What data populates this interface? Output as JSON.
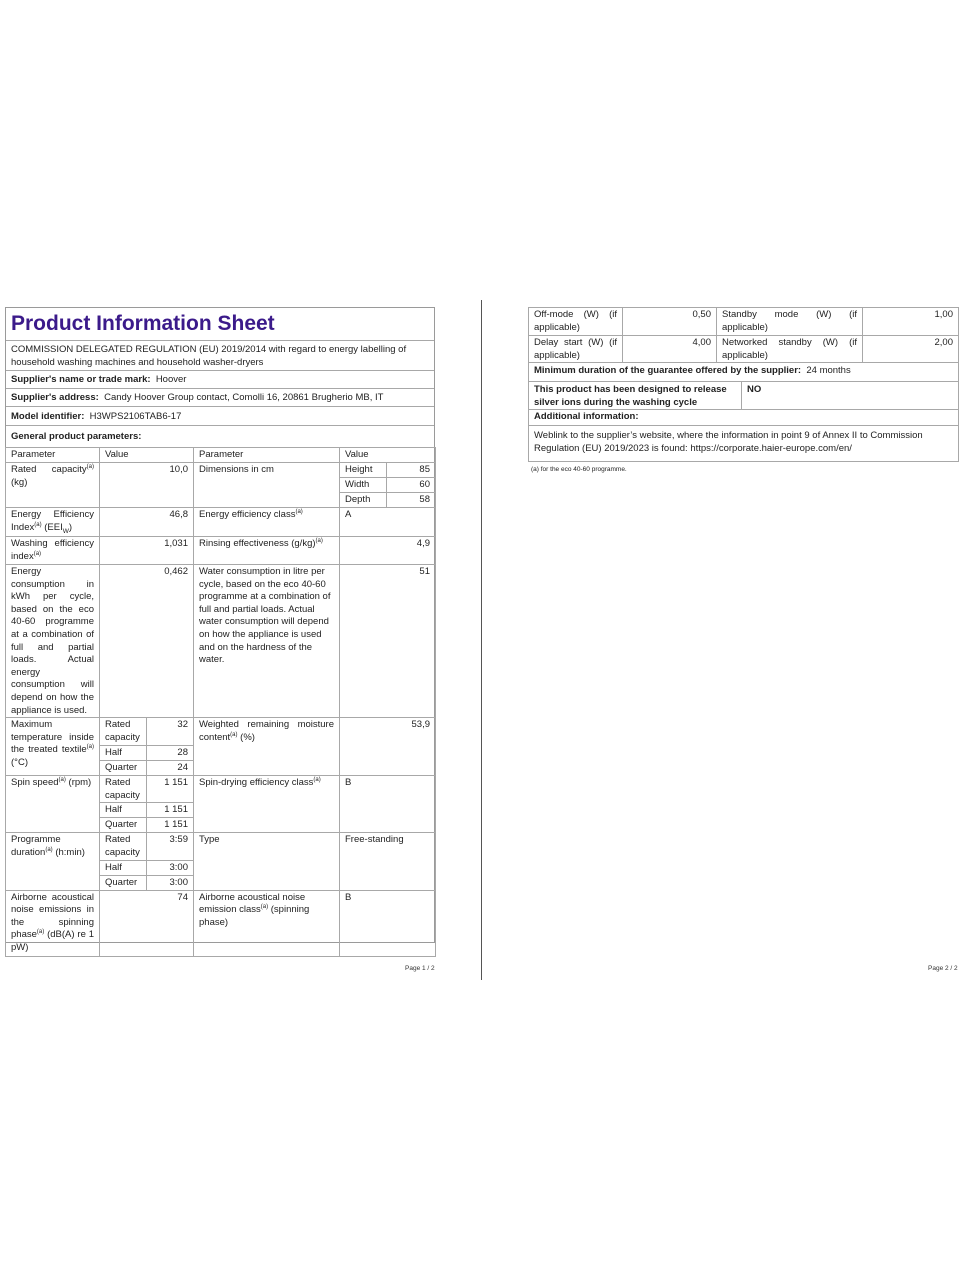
{
  "page1": {
    "title": "Product Information Sheet",
    "regulation": "COMMISSION DELEGATED REGULATION (EU) 2019/2014 with regard to energy labelling of household washing machines and household washer-dryers",
    "supplier_name_label": "Supplier's name or trade mark:",
    "supplier_name": "Hoover",
    "supplier_address_label": "Supplier's address:",
    "supplier_address": "Candy Hoover Group contact, Comolli 16, 20861 Brugherio MB, IT",
    "model_label": "Model identifier:",
    "model": "H3WPS2106TAB6-17",
    "general_label": "General product parameters:",
    "table": {
      "h_param": "Parameter",
      "h_value": "Value",
      "sup": "(a)",
      "rated_capacity": {
        "pre": "Rated capacity",
        "post": "(kg)",
        "value": "10,0"
      },
      "dimensions": {
        "label": "Dimensions in cm",
        "height_label": "Height",
        "height": "85",
        "width_label": "Width",
        "width": "60",
        "depth_label": "Depth",
        "depth": "58"
      },
      "eei": {
        "pre": "Energy Efficiency Index",
        "post": "(EEI",
        "sub": "W",
        "close": ")",
        "value": "46,8"
      },
      "eec": {
        "pre": "Energy efficiency class",
        "value": "A"
      },
      "wei": {
        "pre": "Washing efficiency index",
        "value": "1,031"
      },
      "rinsing": {
        "pre": "Rinsing effectiveness (g/kg)",
        "value": "4,9"
      },
      "energy": {
        "label": "Energy consumption in kWh per cycle, based on the eco 40-60 programme at a combination of full and partial loads. Actual energy consumption will depend on how the appliance is used.",
        "value": "0,462"
      },
      "water": {
        "label": "Water consumption in litre per cycle, based on the eco 40-60 programme at a combination of full and partial loads. Actual water consumption will depend on how the appliance is used and on the hardness of the water.",
        "value": "51"
      },
      "load_rated": "Rated capacity",
      "load_half": "Half",
      "load_quarter": "Quarter",
      "max_temp": {
        "pre": "Maximum temperature inside the treated textile",
        "post": "(°C)",
        "rated": "32",
        "half": "28",
        "quarter": "24"
      },
      "moisture": {
        "pre": "Weighted remaining moisture content",
        "post": "(%)",
        "value": "53,9"
      },
      "spin": {
        "pre": "Spin speed",
        "post": "(rpm)",
        "rated": "1 151",
        "half": "1 151",
        "quarter": "1 151"
      },
      "spin_class": {
        "pre": "Spin-drying efficiency class",
        "value": "B"
      },
      "duration": {
        "pre": "Programme duration",
        "post": "(h:min)",
        "rated": "3:59",
        "half": "3:00",
        "quarter": "3:00"
      },
      "type": {
        "label": "Type",
        "value": "Free-standing"
      },
      "noise": {
        "pre": "Airborne acoustical noise emissions in the spinning phase",
        "post": "(dB(A) re 1 pW)",
        "value": "74"
      },
      "noise_class": {
        "pre": "Airborne acoustical noise emission class",
        "post": "(spinning phase)",
        "value": "B"
      }
    },
    "footer": "Page 1 / 2"
  },
  "page2": {
    "off_mode": {
      "label": "Off-mode (W) (if applicable)",
      "value": "0,50"
    },
    "standby": {
      "label": "Standby mode (W) (if applicable)",
      "value": "1,00"
    },
    "delay": {
      "label": "Delay start (W) (if applicable)",
      "value": "4,00"
    },
    "networked": {
      "label": "Networked standby (W) (if applicable)",
      "value": "2,00"
    },
    "guarantee_label": "Minimum duration of the guarantee offered by the supplier:",
    "guarantee": "24 months",
    "silver_label": "This product has been designed to release silver ions during the washing cycle",
    "silver": "NO",
    "additional_label": "Additional information:",
    "weblink": "Weblink to the supplier’s website, where the information in point 9 of Annex II to Commission Regulation (EU) 2019/2023 is found:  https://corporate.haier-europe.com/en/",
    "footnote": "(a) for the eco 40-60 programme.",
    "footer": "Page 2 / 2"
  }
}
